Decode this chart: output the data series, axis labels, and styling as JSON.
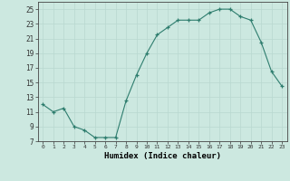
{
  "x": [
    0,
    1,
    2,
    3,
    4,
    5,
    6,
    7,
    8,
    9,
    10,
    11,
    12,
    13,
    14,
    15,
    16,
    17,
    18,
    19,
    20,
    21,
    22,
    23
  ],
  "y": [
    12,
    11,
    11.5,
    9,
    8.5,
    7.5,
    7.5,
    7.5,
    12.5,
    16,
    19,
    21.5,
    22.5,
    23.5,
    23.5,
    23.5,
    24.5,
    25,
    25,
    24,
    23.5,
    20.5,
    16.5,
    14.5
  ],
  "xlabel": "Humidex (Indice chaleur)",
  "line_color": "#2e7d6e",
  "marker": "+",
  "bg_color": "#cce8e0",
  "grid_color": "#b8d8d0",
  "xlim": [
    -0.5,
    23.5
  ],
  "ylim": [
    7,
    26
  ],
  "yticks": [
    7,
    9,
    11,
    13,
    15,
    17,
    19,
    21,
    23,
    25
  ],
  "xticks": [
    0,
    1,
    2,
    3,
    4,
    5,
    6,
    7,
    8,
    9,
    10,
    11,
    12,
    13,
    14,
    15,
    16,
    17,
    18,
    19,
    20,
    21,
    22,
    23
  ]
}
